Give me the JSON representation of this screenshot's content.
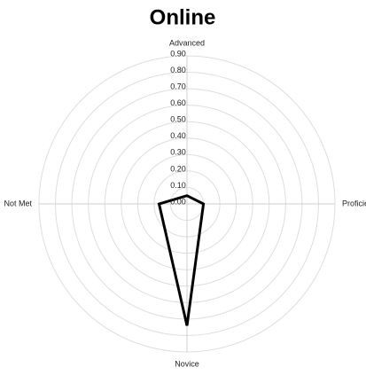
{
  "chart_data": {
    "type": "radar",
    "title": "Online",
    "categories": [
      "Advanced",
      "Proficient",
      "Novice",
      "Not Met"
    ],
    "values": [
      0.05,
      0.1,
      0.74,
      0.17
    ],
    "color": "#000000",
    "rlim": [
      0,
      0.9
    ],
    "rticks": [
      {
        "value": 0,
        "label": "0.00"
      },
      {
        "value": 0.1,
        "label": "0.10"
      },
      {
        "value": 0.2,
        "label": "0.20"
      },
      {
        "value": 0.3,
        "label": "0.30"
      },
      {
        "value": 0.4,
        "label": "0.40"
      },
      {
        "value": 0.5,
        "label": "0.50"
      },
      {
        "value": 0.6,
        "label": "0.60"
      },
      {
        "value": 0.7,
        "label": "0.70"
      },
      {
        "value": 0.8,
        "label": "0.80"
      },
      {
        "value": 0.9,
        "label": "0.90"
      }
    ],
    "grid": true
  }
}
